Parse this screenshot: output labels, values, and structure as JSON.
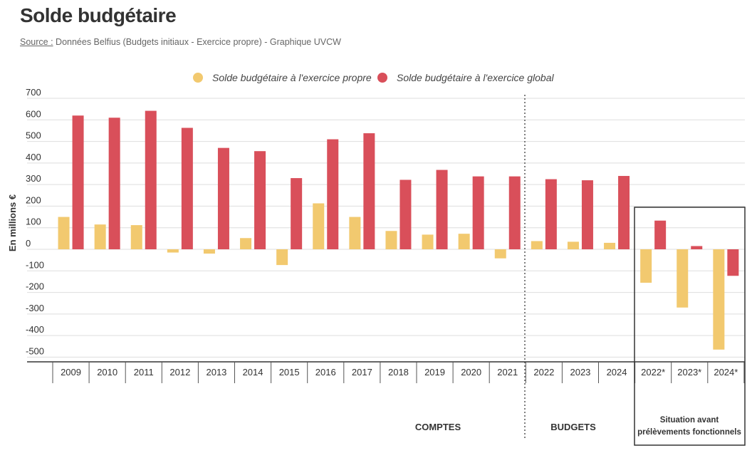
{
  "header": {
    "title": "Solde budgétaire",
    "source_label": "Source :",
    "source_text": "Données Belfius (Budgets initiaux - Exercice propre) - Graphique UVCW"
  },
  "chart_data": {
    "type": "bar",
    "title": "Solde budgétaire",
    "ylabel": "En millions €",
    "xlabel": "",
    "ylim": [
      -530,
      700
    ],
    "yticks": [
      700,
      600,
      500,
      400,
      300,
      200,
      100,
      0,
      -100,
      -200,
      -300,
      -400,
      -500
    ],
    "legend_position": "top-center",
    "grid": true,
    "categories": [
      "2009",
      "2010",
      "2011",
      "2012",
      "2013",
      "2014",
      "2015",
      "2016",
      "2017",
      "2018",
      "2019",
      "2020",
      "2021",
      "2022",
      "2023",
      "2024",
      "2022*",
      "2023*",
      "2024*"
    ],
    "series": [
      {
        "name": "Solde budgétaire à l'exercice propre",
        "color": "#f2c96f",
        "values": [
          150,
          115,
          112,
          -15,
          -20,
          52,
          -73,
          213,
          150,
          85,
          68,
          72,
          -42,
          38,
          35,
          30,
          -155,
          -270,
          -465
        ]
      },
      {
        "name": "Solde budgétaire à l'exercice global",
        "color": "#d94f5a",
        "values": [
          620,
          610,
          642,
          563,
          470,
          455,
          330,
          510,
          538,
          322,
          368,
          338,
          338,
          325,
          320,
          340,
          133,
          15,
          -123
        ]
      }
    ],
    "groups": [
      {
        "label": "COMPTES",
        "from": 0,
        "to": 12
      },
      {
        "label": "BUDGETS",
        "from": 13,
        "to": 15
      },
      {
        "label": "Situation avant prélèvements fonctionnels",
        "line1": "Situation avant",
        "line2": "prélèvements fonctionnels",
        "from": 16,
        "to": 18
      }
    ]
  }
}
